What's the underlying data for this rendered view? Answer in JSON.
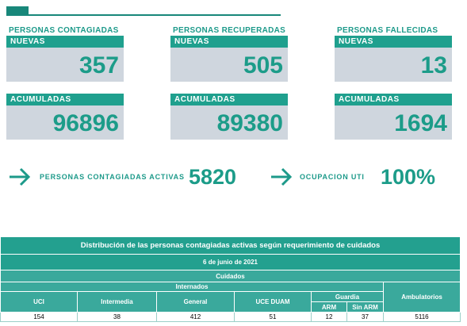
{
  "cards": [
    {
      "title": "PERSONAS CONTAGIADAS",
      "new_label": "NUEVAS",
      "new_value": 357,
      "total_label": "ACUMULADAS",
      "total_value": 96896
    },
    {
      "title": "PERSONAS RECUPERADAS",
      "new_label": "NUEVAS",
      "new_value": 505,
      "total_label": "ACUMULADAS",
      "total_value": 89380
    },
    {
      "title": "PERSONAS FALLECIDAS",
      "new_label": "NUEVAS",
      "new_value": 13,
      "total_label": "ACUMULADAS",
      "total_value": 1694
    }
  ],
  "active": {
    "label": "PERSONAS CONTAGIADAS ACTIVAS",
    "value": 5820
  },
  "uti": {
    "label": "OCUPACION UTI",
    "value": "100%"
  },
  "table": {
    "title": "Distribución de las personas contagiadas activas según requerimiento de cuidados",
    "date": "6 de junio de 2021",
    "group": "Cuidados",
    "internados": "Internados",
    "guardia": "Guardia",
    "ambulatorios": "Ambulatorios",
    "columns": [
      "UCI",
      "Intermedia",
      "General",
      "UCE DUAM"
    ],
    "guardia_columns": [
      "ARM",
      "Sin ARM"
    ],
    "row": [
      154,
      38,
      412,
      51,
      12,
      37,
      5116
    ]
  }
}
